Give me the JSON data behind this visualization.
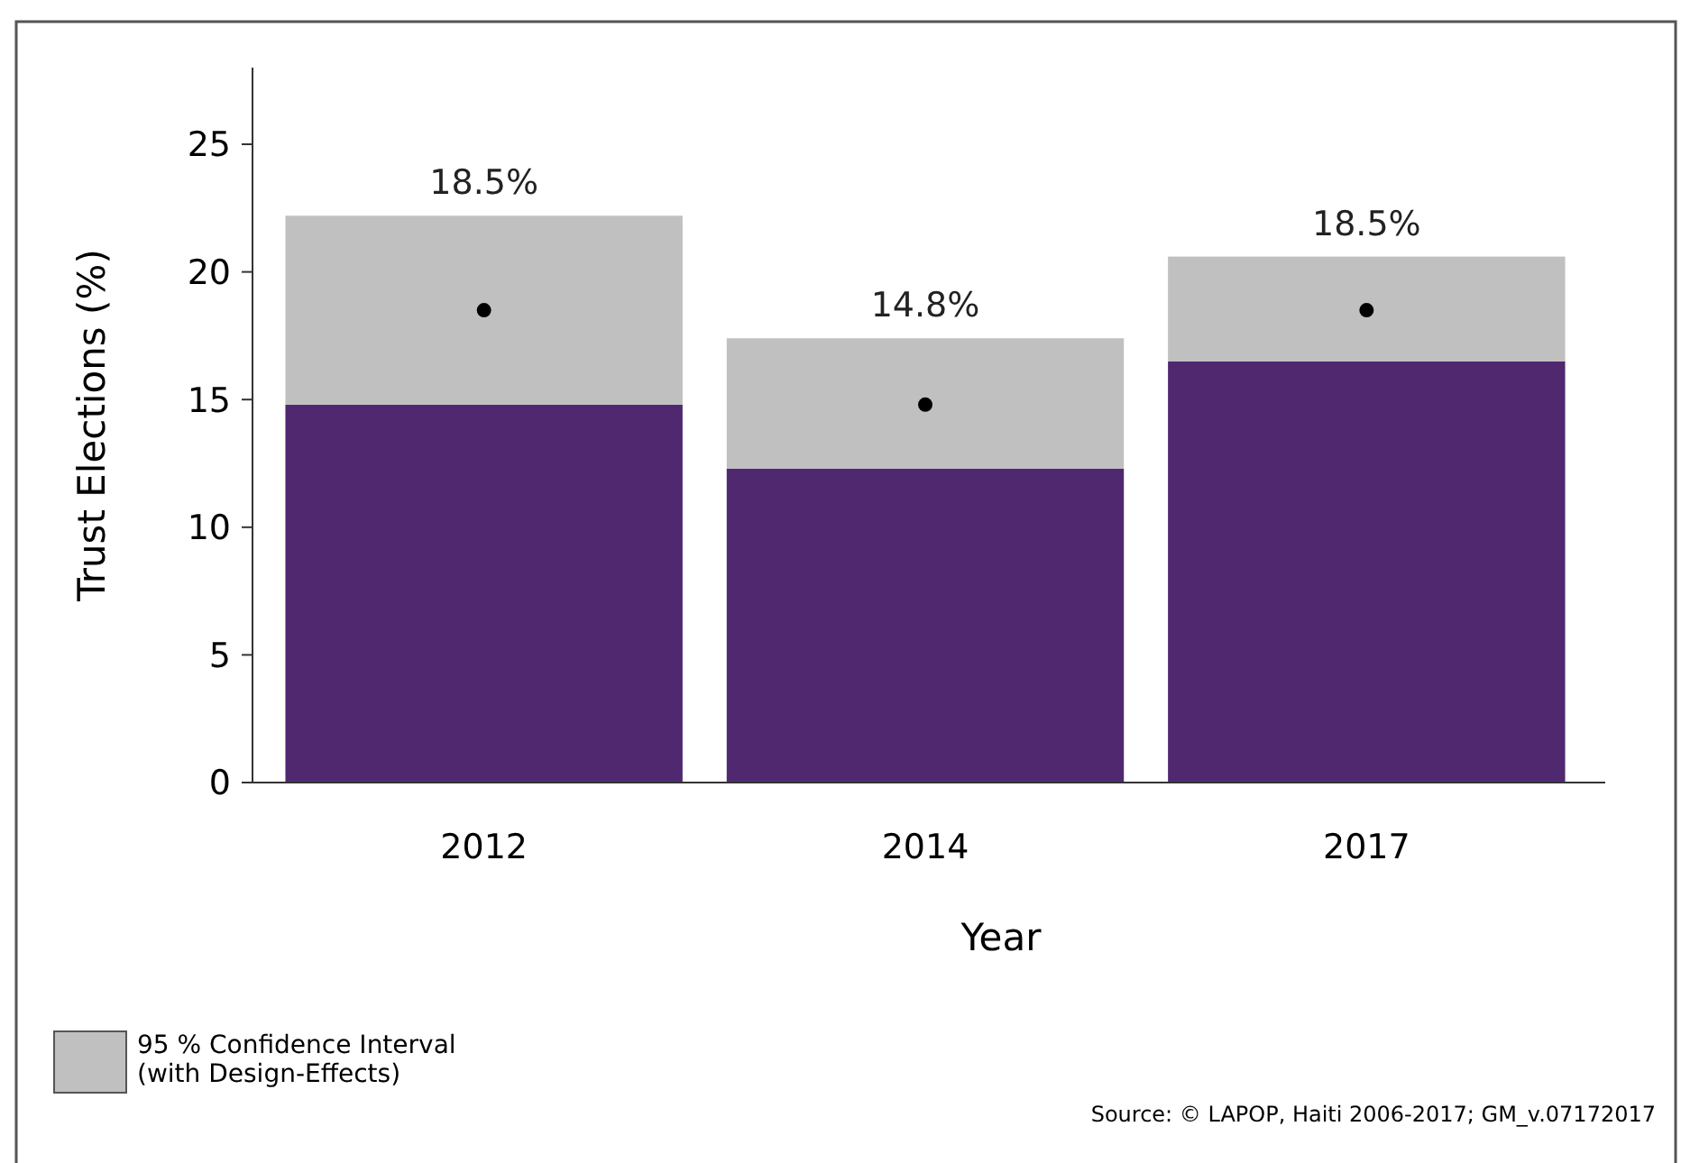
{
  "chart_data": {
    "type": "bar",
    "stacked": true,
    "ylabel": "Trust Elections (%)",
    "xlabel": "Year",
    "categories": [
      "2012",
      "2014",
      "2017"
    ],
    "series": [
      {
        "color": "#4f2870",
        "values": [
          14.8,
          12.3,
          16.5
        ]
      },
      {
        "name": "95 % Confidence Interval (with Design-Effects)",
        "color": "#c0c0c0",
        "values": [
          7.4,
          5.1,
          4.1
        ]
      },
      {
        "type": "scatter",
        "color": "#000000",
        "marker": "circle",
        "values": [
          18.5,
          14.8,
          18.5
        ],
        "value_labels": [
          "18.5%",
          "14.8%",
          "18.5%"
        ]
      }
    ],
    "ylim": [
      0,
      28
    ],
    "yticks": [
      0,
      5,
      10,
      15,
      20,
      25
    ],
    "grid": false,
    "legend": "bottom left",
    "annotations": [
      "Source: © LAPOP, Haiti 2006-2017; GM_v.07172017"
    ]
  }
}
